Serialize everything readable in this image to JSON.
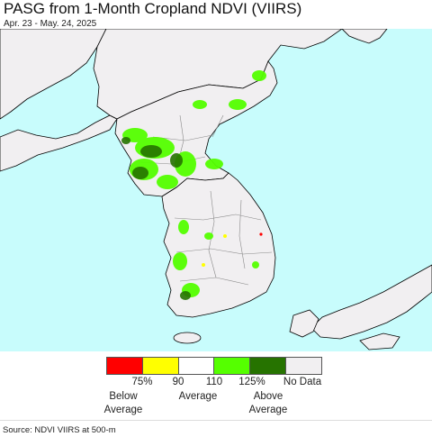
{
  "header": {
    "title": "PASG from 1-Month Cropland NDVI (VIIRS)",
    "date_range": "Apr. 23 - May. 24, 2025"
  },
  "map": {
    "region": "Korean Peninsula",
    "colors": {
      "sea": "#c8fcfc",
      "land": "#f1eff1",
      "border": "#000000",
      "admin_border": "#888888"
    }
  },
  "legend": {
    "swatches": [
      {
        "color": "#ff0000"
      },
      {
        "color": "#ffff00"
      },
      {
        "color": "#ffffff"
      },
      {
        "color": "#55ff00"
      },
      {
        "color": "#267300"
      },
      {
        "color": "#f1eff1"
      }
    ],
    "ticks": [
      "75%",
      "90",
      "110",
      "125%"
    ],
    "below_label_1": "Below",
    "below_label_2": "Average",
    "average_label": "Average",
    "above_label_1": "Above",
    "above_label_2": "Average",
    "nodata_label": "No Data"
  },
  "footer": {
    "source": "Source: NDVI VIIRS at 500-m"
  }
}
